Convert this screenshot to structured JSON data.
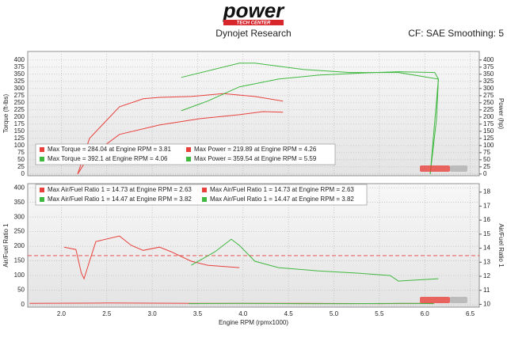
{
  "header": {
    "logo": "power",
    "logo_sub": "TECH CENTER",
    "title": "Dynojet Research",
    "settings": "CF: SAE Smoothing: 5"
  },
  "chart_data": [
    {
      "type": "line",
      "ylabel": "Torque (ft-lbs)",
      "y2label": "Power (hp)",
      "xlim": [
        1.63,
        6.6
      ],
      "xticks": [
        2,
        2.5,
        3,
        3.5,
        4,
        4.5,
        5,
        5.5,
        6,
        6.5
      ],
      "ylim": [
        -6,
        430
      ],
      "yticks": [
        0,
        25,
        50,
        75,
        100,
        125,
        150,
        175,
        200,
        225,
        250,
        275,
        300,
        325,
        350,
        375,
        400
      ],
      "y2lim": [
        -6,
        430
      ],
      "y2ticks": [
        0,
        25,
        50,
        75,
        100,
        125,
        150,
        175,
        200,
        225,
        250,
        275,
        300,
        325,
        350,
        375,
        400
      ],
      "grid": true,
      "series": [
        {
          "name": "Max Torque = 284.04 at Engine RPM = 3.81",
          "color": "#e8413c",
          "x": [
            2.18,
            2.31,
            2.64,
            2.9,
            3.08,
            3.43,
            3.78,
            4.13,
            4.44
          ],
          "values": [
            0,
            125,
            236,
            264,
            269,
            272,
            282,
            272,
            256
          ]
        },
        {
          "name": "Max Torque = 392.1 at Engine RPM = 4.06",
          "color": "#3fb83f",
          "x": [
            3.32,
            3.96,
            4.13,
            4.66,
            5.18,
            5.71,
            6.15,
            6.13,
            6.06
          ],
          "values": [
            339,
            389,
            389,
            367,
            356,
            356,
            333,
            194,
            0
          ]
        },
        {
          "name": "Max Power = 219.89 at Engine RPM = 4.26",
          "color": "#e8413c",
          "axis": "y2",
          "x": [
            2.18,
            2.29,
            2.64,
            3.08,
            3.52,
            3.96,
            4.22,
            4.44
          ],
          "values": [
            0,
            56,
            139,
            172,
            194,
            208,
            219,
            217
          ]
        },
        {
          "name": "Max Power = 359.54 at Engine RPM = 5.59",
          "color": "#3fb83f",
          "axis": "y2",
          "x": [
            3.32,
            3.61,
            3.96,
            4.39,
            4.83,
            5.36,
            5.71,
            6.11,
            6.15,
            6.06
          ],
          "values": [
            222,
            256,
            306,
            333,
            347,
            355,
            359,
            356,
            333,
            0
          ]
        }
      ]
    },
    {
      "type": "line",
      "ylabel": "Air/Fuel Ratio 1",
      "y2label": "Air/Fuel Ratio 1",
      "xlabel": "Engine RPM (rpmx1000)",
      "xlim": [
        1.63,
        6.6
      ],
      "xticks": [
        {
          "value": 2,
          "label": "2.0"
        },
        {
          "value": 2.5,
          "label": "2.5"
        },
        {
          "value": 3,
          "label": "3.0"
        },
        {
          "value": 3.5,
          "label": "3.5"
        },
        {
          "value": 4,
          "label": "4.0"
        },
        {
          "value": 4.5,
          "label": "4.5"
        },
        {
          "value": 5,
          "label": "5.0"
        },
        {
          "value": 5.5,
          "label": "5.5"
        },
        {
          "value": 6,
          "label": "6.0"
        },
        {
          "value": 6.5,
          "label": "6.5"
        }
      ],
      "ylim": [
        -8,
        414
      ],
      "yticks": [
        0,
        50,
        100,
        150,
        200,
        250,
        300,
        350,
        400
      ],
      "y2lim": [
        9.8,
        18.6
      ],
      "y2ticks": [
        10,
        11,
        12,
        13,
        14,
        15,
        16,
        17,
        18
      ],
      "grid": true,
      "reference_line": 168,
      "reference_color": "#e8413c",
      "series": [
        {
          "name": "Max Air/Fuel Ratio 1 = 14.73 at Engine RPM = 2.63",
          "color": "#e8413c",
          "x": [
            2.03,
            2.16,
            2.22,
            2.25,
            2.31,
            2.38,
            2.64,
            2.77,
            2.9,
            3.08,
            3.21,
            3.43,
            3.61,
            3.96
          ],
          "values": [
            197,
            189,
            108,
            89,
            149,
            216,
            235,
            203,
            186,
            197,
            181,
            149,
            135,
            127
          ]
        },
        {
          "name": "Max Air/Fuel Ratio 1 = 14.47 at Engine RPM = 3.82",
          "color": "#3fb83f",
          "x": [
            3.43,
            3.69,
            3.87,
            3.96,
            4.13,
            4.39,
            4.83,
            5.27,
            5.62,
            5.71,
            6.15
          ],
          "values": [
            135,
            181,
            224,
            203,
            149,
            127,
            116,
            108,
            100,
            81,
            89
          ]
        },
        {
          "name": "Max Air/Fuel Ratio 1 = 14.73 at Engine RPM = 2.63",
          "color": "#e8413c",
          "x": [
            1.65,
            2.5,
            3.5,
            4.5,
            5.5,
            6.1
          ],
          "values": [
            5,
            6,
            5,
            5,
            4,
            5
          ]
        },
        {
          "name": "Max Air/Fuel Ratio 1 = 14.47 at Engine RPM = 3.82",
          "color": "#3fb83f",
          "x": [
            3.4,
            4.0,
            4.6,
            5.2,
            5.8,
            6.1
          ],
          "values": [
            4,
            5,
            4,
            4,
            5,
            4
          ]
        }
      ]
    }
  ]
}
